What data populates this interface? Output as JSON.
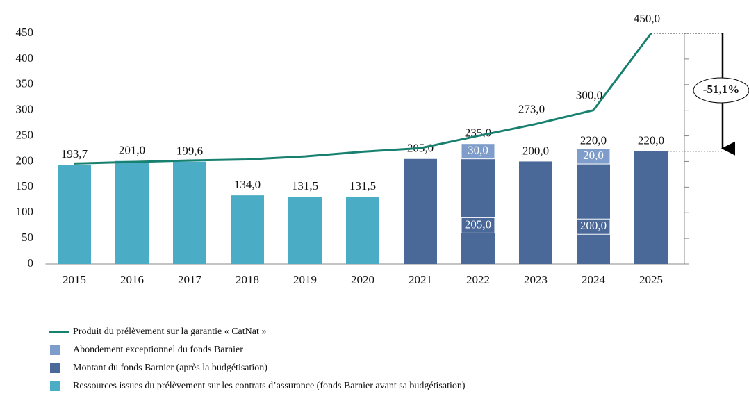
{
  "chart_data": {
    "type": "bar",
    "categories": [
      "2015",
      "2016",
      "2017",
      "2018",
      "2019",
      "2020",
      "2021",
      "2022",
      "2023",
      "2024",
      "2025"
    ],
    "series": [
      {
        "name": "Produit du prélèvement sur la garantie « CatNat »",
        "type": "line",
        "color": "#17806f",
        "values": [
          196,
          199,
          202,
          204,
          210,
          219,
          226,
          250,
          273,
          300,
          450
        ],
        "value_labels": [
          null,
          null,
          null,
          null,
          null,
          null,
          null,
          null,
          "273,0",
          "300,0",
          "450,0"
        ]
      },
      {
        "name": "Abondement exceptionnel du fonds Barnier",
        "type": "bar",
        "color": "#7f9dcb",
        "values": [
          null,
          null,
          null,
          null,
          null,
          null,
          null,
          30,
          null,
          20,
          null
        ],
        "value_labels": [
          null,
          null,
          null,
          null,
          null,
          null,
          null,
          "30,0",
          null,
          "20,0",
          null
        ]
      },
      {
        "name": "Montant du fonds Barnier (après la budgétisation)",
        "type": "bar",
        "color": "#4a6898",
        "values": [
          null,
          null,
          null,
          null,
          null,
          null,
          205,
          205,
          200,
          200,
          220
        ],
        "value_labels": [
          null,
          null,
          null,
          null,
          null,
          null,
          "205,0",
          "205,0",
          "200,0",
          "200,0",
          "220,0"
        ]
      },
      {
        "name": "Ressources issues du prélèvement sur les contrats d’assurance (fonds Barnier avant sa budgétisation)",
        "type": "bar",
        "color": "#4bacc6",
        "values": [
          193.7,
          201,
          199.6,
          134,
          131.5,
          131.5,
          null,
          null,
          null,
          null,
          null
        ],
        "value_labels": [
          "193,7",
          "201,0",
          "199,6",
          "134,0",
          "131,5",
          "131,5",
          null,
          null,
          null,
          null,
          null
        ]
      }
    ],
    "total_labels": [
      null,
      null,
      null,
      null,
      null,
      null,
      null,
      "235,0",
      null,
      "220,0",
      null
    ],
    "annotation": "-51,1%",
    "ylim": [
      0,
      450
    ],
    "yticks": [
      0,
      50,
      100,
      150,
      200,
      250,
      300,
      350,
      400,
      450
    ]
  }
}
